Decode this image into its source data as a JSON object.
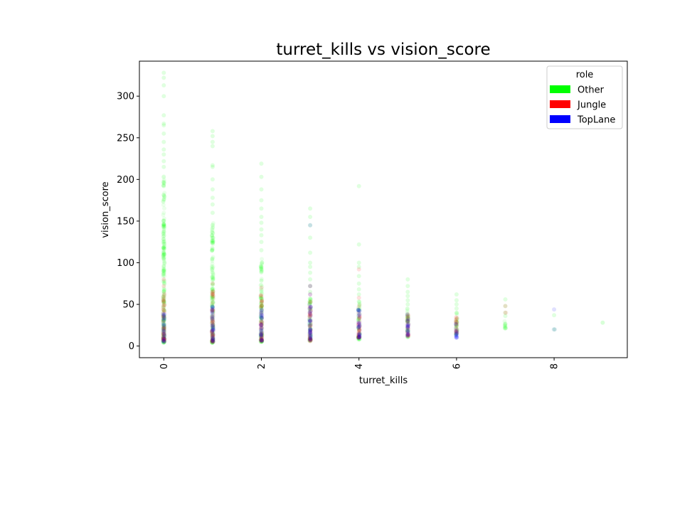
{
  "chart_data": {
    "type": "scatter",
    "title": "turret_kills vs vision_score",
    "xlabel": "turret_kills",
    "ylabel": "vision_score",
    "xlim": [
      -0.5,
      9.5
    ],
    "ylim": [
      -14,
      342
    ],
    "x_ticks": [
      0,
      2,
      4,
      6,
      8
    ],
    "y_ticks": [
      0,
      50,
      100,
      150,
      200,
      250,
      300
    ],
    "x_tick_rotation": 90,
    "grid": false,
    "point_alpha": 0.08,
    "legend": {
      "title": "role",
      "position": "top-right",
      "entries": [
        {
          "label": "Other",
          "color": "#00ff00"
        },
        {
          "label": "Jungle",
          "color": "#ff0000"
        },
        {
          "label": "TopLane",
          "color": "#0000ff"
        }
      ]
    },
    "series": [
      {
        "name": "Other",
        "color": "#00ff00",
        "columns": [
          {
            "x": 0,
            "y_min": 4,
            "y_dense_max": 205,
            "outliers": [
              215,
              222,
              230,
              236,
              245,
              255,
              265,
              267,
              277,
              300,
              313,
              322,
              328
            ]
          },
          {
            "x": 1,
            "y_min": 4,
            "y_dense_max": 150,
            "outliers": [
              160,
              170,
              178,
              188,
              200,
              215,
              217,
              240,
              245,
              252,
              258
            ]
          },
          {
            "x": 2,
            "y_min": 5,
            "y_dense_max": 105,
            "outliers": [
              115,
              125,
              133,
              140,
              148,
              155,
              165,
              175,
              188,
              203,
              219
            ]
          },
          {
            "x": 3,
            "y_min": 6,
            "y_dense_max": 60,
            "outliers": [
              65,
              72,
              80,
              88,
              95,
              100,
              112,
              130,
              145,
              155,
              165
            ]
          },
          {
            "x": 4,
            "y_min": 8,
            "y_dense_max": 55,
            "outliers": [
              62,
              68,
              75,
              84,
              95,
              100,
              122,
              192
            ]
          },
          {
            "x": 5,
            "y_min": 10,
            "y_dense_max": 45,
            "outliers": [
              50,
              55,
              60,
              65,
              72,
              80
            ]
          },
          {
            "x": 6,
            "y_min": 14,
            "y_dense_max": 40,
            "outliers": [
              45,
              50,
              55,
              62
            ]
          },
          {
            "x": 7,
            "y_min": 20,
            "y_dense_max": 30,
            "outliers": [
              36,
              40,
              48,
              56
            ]
          },
          {
            "x": 8,
            "y_min": 20,
            "y_dense_max": 20,
            "outliers": [
              37
            ]
          },
          {
            "x": 9,
            "y_min": 28,
            "y_dense_max": 28,
            "outliers": []
          }
        ]
      },
      {
        "name": "Jungle",
        "color": "#ff0000",
        "columns": [
          {
            "x": 0,
            "y_min": 5,
            "y_dense_max": 65,
            "outliers": [
              72,
              80
            ]
          },
          {
            "x": 1,
            "y_min": 5,
            "y_dense_max": 68,
            "outliers": [
              75
            ]
          },
          {
            "x": 2,
            "y_min": 6,
            "y_dense_max": 62,
            "outliers": [
              70
            ]
          },
          {
            "x": 3,
            "y_min": 6,
            "y_dense_max": 55,
            "outliers": [
              62,
              72
            ]
          },
          {
            "x": 4,
            "y_min": 10,
            "y_dense_max": 50,
            "outliers": [
              58,
              92
            ]
          },
          {
            "x": 5,
            "y_min": 12,
            "y_dense_max": 40,
            "outliers": []
          },
          {
            "x": 6,
            "y_min": 15,
            "y_dense_max": 35,
            "outliers": []
          },
          {
            "x": 7,
            "y_min": 40,
            "y_dense_max": 40,
            "outliers": [
              48
            ]
          }
        ]
      },
      {
        "name": "TopLane",
        "color": "#0000ff",
        "columns": [
          {
            "x": 0,
            "y_min": 5,
            "y_dense_max": 40,
            "outliers": []
          },
          {
            "x": 1,
            "y_min": 5,
            "y_dense_max": 48,
            "outliers": []
          },
          {
            "x": 2,
            "y_min": 6,
            "y_dense_max": 45,
            "outliers": []
          },
          {
            "x": 3,
            "y_min": 7,
            "y_dense_max": 50,
            "outliers": [
              62,
              72,
              145
            ]
          },
          {
            "x": 4,
            "y_min": 10,
            "y_dense_max": 45,
            "outliers": []
          },
          {
            "x": 5,
            "y_min": 12,
            "y_dense_max": 38,
            "outliers": []
          },
          {
            "x": 6,
            "y_min": 10,
            "y_dense_max": 28,
            "outliers": []
          },
          {
            "x": 8,
            "y_min": 20,
            "y_dense_max": 20,
            "outliers": [
              44
            ]
          }
        ]
      }
    ]
  }
}
